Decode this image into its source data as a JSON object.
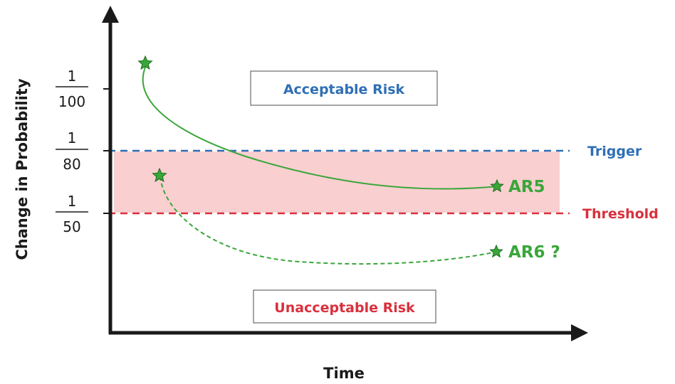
{
  "axes": {
    "y_label": "Change in Probability",
    "x_label": "Time"
  },
  "ticks": [
    {
      "numerator": "1",
      "denominator": "100"
    },
    {
      "numerator": "1",
      "denominator": "80"
    },
    {
      "numerator": "1",
      "denominator": "50"
    }
  ],
  "lines": {
    "trigger": {
      "label": "Trigger",
      "color": "#2f6fb5"
    },
    "threshold": {
      "label": "Threshold",
      "color": "#d9303c"
    }
  },
  "regions": {
    "acceptable": {
      "label": "Acceptable Risk",
      "color": "#2f6fb5"
    },
    "unacceptable": {
      "label": "Unacceptable Risk",
      "color": "#d9303c"
    },
    "band_color": "#f9cfd0"
  },
  "curves": {
    "ar5": {
      "label": "AR5",
      "color": "#3aa63a"
    },
    "ar6": {
      "label": "AR6 ?",
      "color": "#3aa63a"
    }
  },
  "colors": {
    "axis": "#1a1a1a",
    "star_fill": "#3aa63a",
    "star_stroke": "#1f6b1f"
  }
}
